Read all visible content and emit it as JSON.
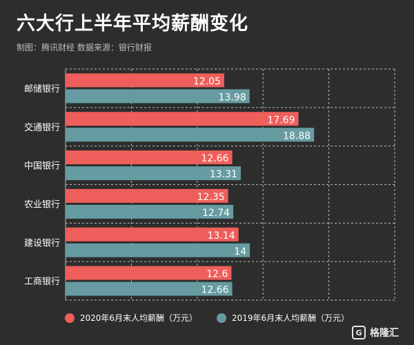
{
  "header": {
    "title": "六大行上半年平均薪酬变化",
    "subtitle": "制图：腾讯财经  数据来源：银行财报"
  },
  "legend": [
    {
      "label": "2020年6月末人均薪酬（万元）",
      "color": "#ee5f5b"
    },
    {
      "label": "2019年6月末人均薪酬（万元）",
      "color": "#669ca1"
    }
  ],
  "logo": {
    "mark_text": "G",
    "text": "格隆汇"
  },
  "chart_data": {
    "type": "bar",
    "orientation": "horizontal",
    "categories": [
      "邮储银行",
      "交通银行",
      "中国银行",
      "农业银行",
      "建设银行",
      "工商银行"
    ],
    "series": [
      {
        "name": "2020年6月末人均薪酬（万元）",
        "color": "#ee5f5b",
        "values": [
          12.05,
          17.69,
          12.66,
          12.35,
          13.14,
          12.6
        ],
        "labels": [
          "12.05",
          "17.69",
          "12.66",
          "12.35",
          "13.14",
          "12.6"
        ]
      },
      {
        "name": "2019年6月末人均薪酬（万元）",
        "color": "#669ca1",
        "values": [
          13.98,
          18.88,
          13.31,
          12.74,
          14,
          12.66
        ],
        "labels": [
          "13.98",
          "18.88",
          "13.31",
          "12.74",
          "14",
          "12.66"
        ]
      }
    ],
    "xlim": [
      0,
      25
    ],
    "grid": true,
    "legend_position": "bottom"
  }
}
